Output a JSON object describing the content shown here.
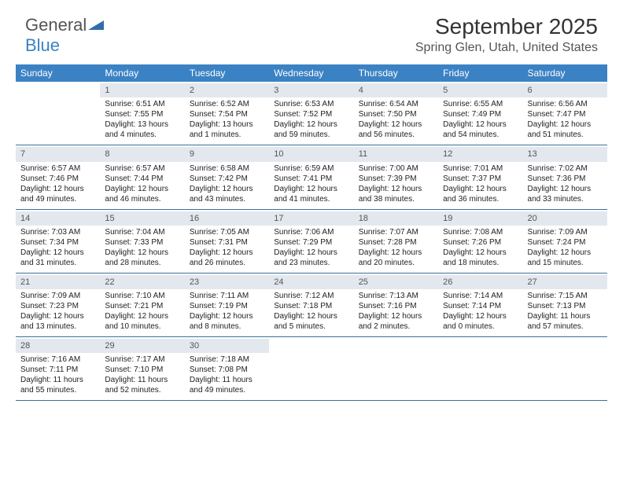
{
  "logo_text_1": "General",
  "logo_text_2": "Blue",
  "logo_triangle_color": "#2f6fa8",
  "title": "September 2025",
  "location": "Spring Glen, Utah, United States",
  "header_bg_color": "#3b82c4",
  "header_text_color": "#ffffff",
  "daynum_bg_color": "#e2e8ee",
  "divider_color": "#3b6f99",
  "weekday_headers": [
    "Sunday",
    "Monday",
    "Tuesday",
    "Wednesday",
    "Thursday",
    "Friday",
    "Saturday"
  ],
  "weeks": [
    [
      {
        "empty": true
      },
      {
        "day": "1",
        "sunrise": "Sunrise: 6:51 AM",
        "sunset": "Sunset: 7:55 PM",
        "daylight": "Daylight: 13 hours and 4 minutes."
      },
      {
        "day": "2",
        "sunrise": "Sunrise: 6:52 AM",
        "sunset": "Sunset: 7:54 PM",
        "daylight": "Daylight: 13 hours and 1 minutes."
      },
      {
        "day": "3",
        "sunrise": "Sunrise: 6:53 AM",
        "sunset": "Sunset: 7:52 PM",
        "daylight": "Daylight: 12 hours and 59 minutes."
      },
      {
        "day": "4",
        "sunrise": "Sunrise: 6:54 AM",
        "sunset": "Sunset: 7:50 PM",
        "daylight": "Daylight: 12 hours and 56 minutes."
      },
      {
        "day": "5",
        "sunrise": "Sunrise: 6:55 AM",
        "sunset": "Sunset: 7:49 PM",
        "daylight": "Daylight: 12 hours and 54 minutes."
      },
      {
        "day": "6",
        "sunrise": "Sunrise: 6:56 AM",
        "sunset": "Sunset: 7:47 PM",
        "daylight": "Daylight: 12 hours and 51 minutes."
      }
    ],
    [
      {
        "day": "7",
        "sunrise": "Sunrise: 6:57 AM",
        "sunset": "Sunset: 7:46 PM",
        "daylight": "Daylight: 12 hours and 49 minutes."
      },
      {
        "day": "8",
        "sunrise": "Sunrise: 6:57 AM",
        "sunset": "Sunset: 7:44 PM",
        "daylight": "Daylight: 12 hours and 46 minutes."
      },
      {
        "day": "9",
        "sunrise": "Sunrise: 6:58 AM",
        "sunset": "Sunset: 7:42 PM",
        "daylight": "Daylight: 12 hours and 43 minutes."
      },
      {
        "day": "10",
        "sunrise": "Sunrise: 6:59 AM",
        "sunset": "Sunset: 7:41 PM",
        "daylight": "Daylight: 12 hours and 41 minutes."
      },
      {
        "day": "11",
        "sunrise": "Sunrise: 7:00 AM",
        "sunset": "Sunset: 7:39 PM",
        "daylight": "Daylight: 12 hours and 38 minutes."
      },
      {
        "day": "12",
        "sunrise": "Sunrise: 7:01 AM",
        "sunset": "Sunset: 7:37 PM",
        "daylight": "Daylight: 12 hours and 36 minutes."
      },
      {
        "day": "13",
        "sunrise": "Sunrise: 7:02 AM",
        "sunset": "Sunset: 7:36 PM",
        "daylight": "Daylight: 12 hours and 33 minutes."
      }
    ],
    [
      {
        "day": "14",
        "sunrise": "Sunrise: 7:03 AM",
        "sunset": "Sunset: 7:34 PM",
        "daylight": "Daylight: 12 hours and 31 minutes."
      },
      {
        "day": "15",
        "sunrise": "Sunrise: 7:04 AM",
        "sunset": "Sunset: 7:33 PM",
        "daylight": "Daylight: 12 hours and 28 minutes."
      },
      {
        "day": "16",
        "sunrise": "Sunrise: 7:05 AM",
        "sunset": "Sunset: 7:31 PM",
        "daylight": "Daylight: 12 hours and 26 minutes."
      },
      {
        "day": "17",
        "sunrise": "Sunrise: 7:06 AM",
        "sunset": "Sunset: 7:29 PM",
        "daylight": "Daylight: 12 hours and 23 minutes."
      },
      {
        "day": "18",
        "sunrise": "Sunrise: 7:07 AM",
        "sunset": "Sunset: 7:28 PM",
        "daylight": "Daylight: 12 hours and 20 minutes."
      },
      {
        "day": "19",
        "sunrise": "Sunrise: 7:08 AM",
        "sunset": "Sunset: 7:26 PM",
        "daylight": "Daylight: 12 hours and 18 minutes."
      },
      {
        "day": "20",
        "sunrise": "Sunrise: 7:09 AM",
        "sunset": "Sunset: 7:24 PM",
        "daylight": "Daylight: 12 hours and 15 minutes."
      }
    ],
    [
      {
        "day": "21",
        "sunrise": "Sunrise: 7:09 AM",
        "sunset": "Sunset: 7:23 PM",
        "daylight": "Daylight: 12 hours and 13 minutes."
      },
      {
        "day": "22",
        "sunrise": "Sunrise: 7:10 AM",
        "sunset": "Sunset: 7:21 PM",
        "daylight": "Daylight: 12 hours and 10 minutes."
      },
      {
        "day": "23",
        "sunrise": "Sunrise: 7:11 AM",
        "sunset": "Sunset: 7:19 PM",
        "daylight": "Daylight: 12 hours and 8 minutes."
      },
      {
        "day": "24",
        "sunrise": "Sunrise: 7:12 AM",
        "sunset": "Sunset: 7:18 PM",
        "daylight": "Daylight: 12 hours and 5 minutes."
      },
      {
        "day": "25",
        "sunrise": "Sunrise: 7:13 AM",
        "sunset": "Sunset: 7:16 PM",
        "daylight": "Daylight: 12 hours and 2 minutes."
      },
      {
        "day": "26",
        "sunrise": "Sunrise: 7:14 AM",
        "sunset": "Sunset: 7:14 PM",
        "daylight": "Daylight: 12 hours and 0 minutes."
      },
      {
        "day": "27",
        "sunrise": "Sunrise: 7:15 AM",
        "sunset": "Sunset: 7:13 PM",
        "daylight": "Daylight: 11 hours and 57 minutes."
      }
    ],
    [
      {
        "day": "28",
        "sunrise": "Sunrise: 7:16 AM",
        "sunset": "Sunset: 7:11 PM",
        "daylight": "Daylight: 11 hours and 55 minutes."
      },
      {
        "day": "29",
        "sunrise": "Sunrise: 7:17 AM",
        "sunset": "Sunset: 7:10 PM",
        "daylight": "Daylight: 11 hours and 52 minutes."
      },
      {
        "day": "30",
        "sunrise": "Sunrise: 7:18 AM",
        "sunset": "Sunset: 7:08 PM",
        "daylight": "Daylight: 11 hours and 49 minutes."
      },
      {
        "empty": true
      },
      {
        "empty": true
      },
      {
        "empty": true
      },
      {
        "empty": true
      }
    ]
  ]
}
